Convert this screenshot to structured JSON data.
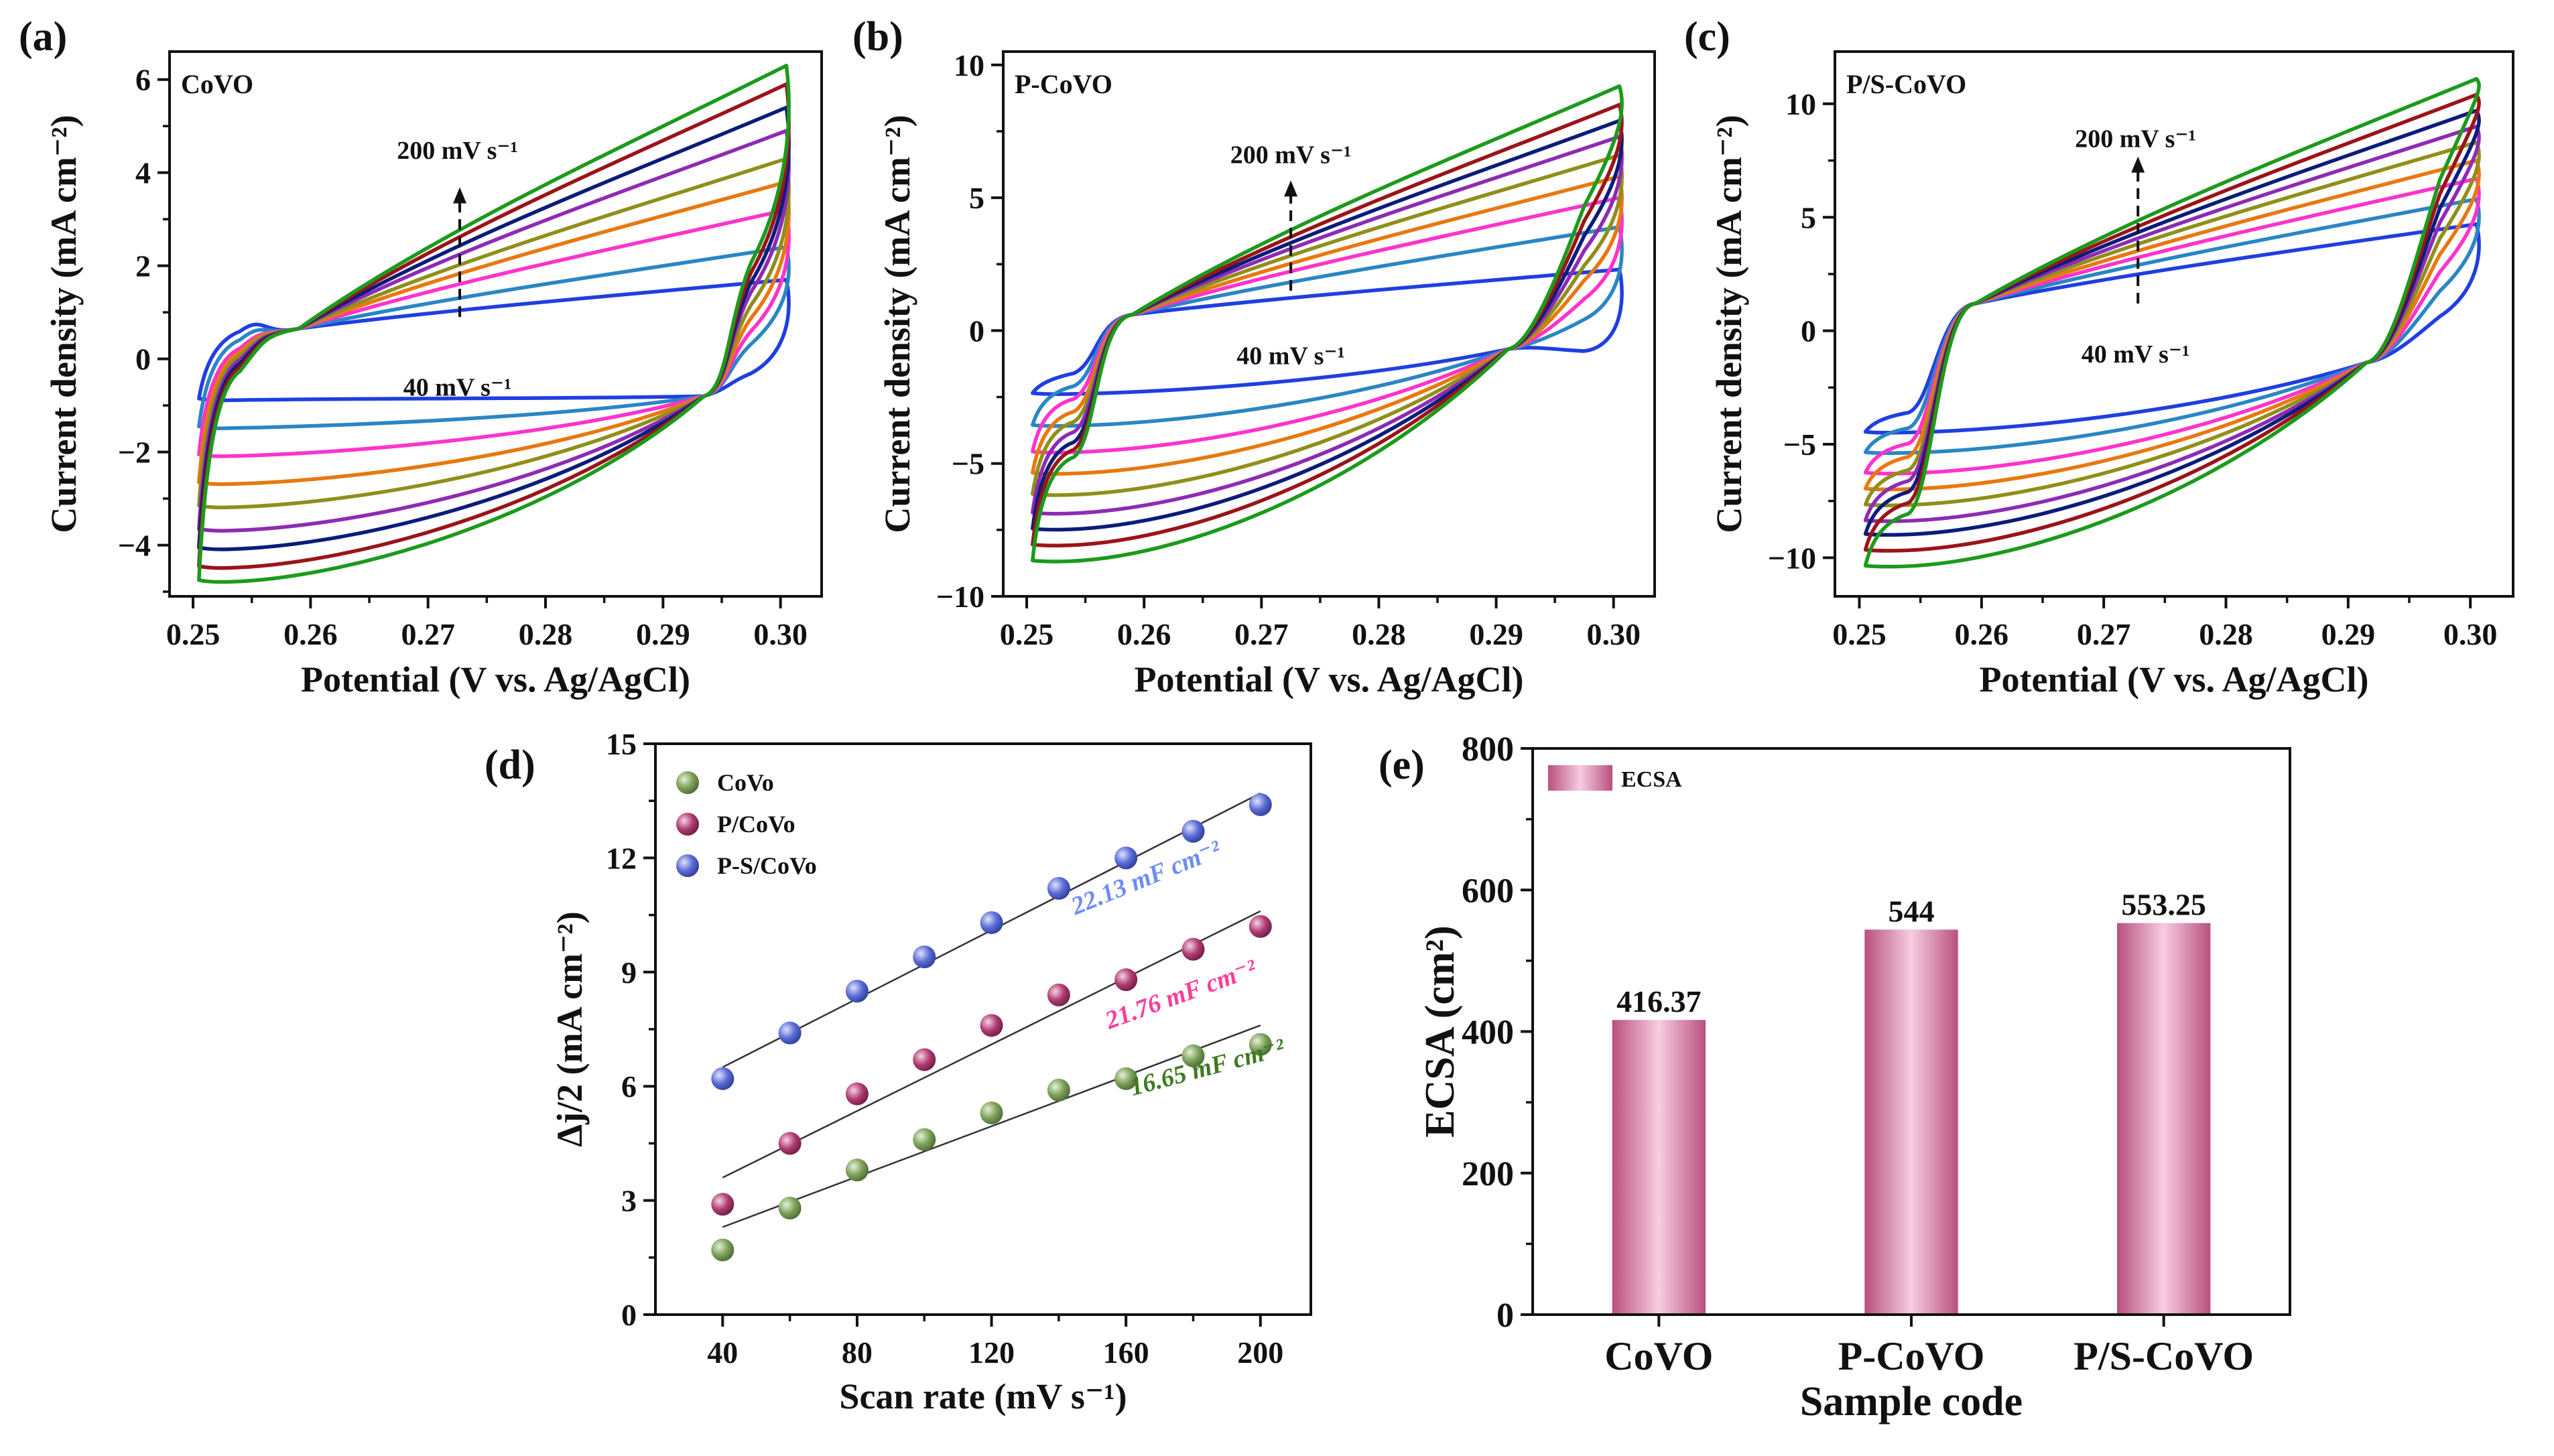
{
  "chart_data": [
    {
      "id": "a",
      "panel_label": "(a)",
      "type": "line",
      "title": "",
      "inset_label": "CoVO",
      "xlabel": "Potential (V vs. Ag/AgCl)",
      "ylabel": "Current density (mA cm⁻²)",
      "xlim": [
        0.248,
        0.3035
      ],
      "ylim": [
        -5.1,
        6.6
      ],
      "xticks": [
        0.25,
        0.26,
        0.27,
        0.28,
        0.29,
        0.3
      ],
      "xtick_labels": [
        "0.25",
        "0.26",
        "0.27",
        "0.28",
        "0.29",
        "0.30"
      ],
      "yticks": [
        -4,
        -2,
        0,
        2,
        4,
        6
      ],
      "ytick_labels": [
        "−4",
        "−2",
        "0",
        "2",
        "4",
        "6"
      ],
      "scan_rates": [
        40,
        60,
        80,
        100,
        120,
        140,
        160,
        180,
        200
      ],
      "colors": [
        "#1f3fe0",
        "#2a86c4",
        "#ff33cc",
        "#e8780f",
        "#8f8f1a",
        "#8e2bb3",
        "#0b1c7a",
        "#9b1419",
        "#1c9a1c"
      ],
      "upper_start": [
        0.4,
        0.2,
        0.0,
        -0.1,
        -0.2,
        -0.3,
        -0.4,
        -0.5,
        -0.6
      ],
      "upper_end": [
        1.7,
        2.4,
        3.2,
        3.8,
        4.3,
        4.9,
        5.4,
        5.9,
        6.3
      ],
      "lower_start": [
        -0.9,
        -1.5,
        -2.1,
        -2.7,
        -3.2,
        -3.7,
        -4.1,
        -4.5,
        -4.8
      ],
      "lower_end": [
        -0.1,
        0.8,
        1.2,
        1.6,
        2.0,
        2.4,
        2.7,
        3.0,
        3.3
      ],
      "cross_low": [
        0.259,
        0.65
      ],
      "cross_high": [
        0.2935,
        -0.8
      ],
      "arrow": {
        "x": 0.2727,
        "y_from": 0.9,
        "y_to": 3.6,
        "label_top": "200 mV s⁻¹",
        "label_bottom": "40 mV s⁻¹",
        "label_top_pos": [
          0.2725,
          4.3
        ],
        "label_bottom_pos": [
          0.2725,
          -0.3
        ]
      }
    },
    {
      "id": "b",
      "panel_label": "(b)",
      "type": "line",
      "title": "",
      "inset_label": "P-CoVO",
      "xlabel": "Potential (V vs. Ag/AgCl)",
      "ylabel": "Current density (mA cm⁻²)",
      "xlim": [
        0.248,
        0.3035
      ],
      "ylim": [
        -10,
        10.5
      ],
      "xticks": [
        0.25,
        0.26,
        0.27,
        0.28,
        0.29,
        0.3
      ],
      "xtick_labels": [
        "0.25",
        "0.26",
        "0.27",
        "0.28",
        "0.29",
        "0.30"
      ],
      "yticks": [
        -10,
        -5,
        0,
        5,
        10
      ],
      "ytick_labels": [
        "−10",
        "−5",
        "0",
        "5",
        "10"
      ],
      "scan_rates": [
        40,
        60,
        80,
        100,
        120,
        140,
        160,
        180,
        200
      ],
      "colors": [
        "#1f3fe0",
        "#2a86c4",
        "#ff33cc",
        "#e8780f",
        "#8f8f1a",
        "#8e2bb3",
        "#0b1c7a",
        "#9b1419",
        "#1c9a1c"
      ],
      "upper_start": [
        -1.8,
        -2.3,
        -2.8,
        -3.3,
        -3.7,
        -4.1,
        -4.5,
        -4.8,
        -5.1
      ],
      "upper_end": [
        2.3,
        3.9,
        5.0,
        5.8,
        6.6,
        7.3,
        7.9,
        8.5,
        9.2
      ],
      "lower_start": [
        -2.4,
        -3.6,
        -4.6,
        -5.4,
        -6.2,
        -6.9,
        -7.5,
        -8.1,
        -8.7
      ],
      "lower_end": [
        -0.8,
        0.9,
        2.0,
        3.0,
        3.8,
        4.6,
        5.4,
        6.2,
        7.0
      ],
      "cross_low": [
        0.259,
        0.6
      ],
      "cross_high": [
        0.291,
        -0.7
      ],
      "arrow": {
        "x": 0.2725,
        "y_from": 1.5,
        "y_to": 5.5,
        "label_top": "200 mV s⁻¹",
        "label_bottom": "40 mV s⁻¹",
        "label_top_pos": [
          0.2725,
          6.3
        ],
        "label_bottom_pos": [
          0.2725,
          -0.4
        ]
      }
    },
    {
      "id": "c",
      "panel_label": "(c)",
      "type": "line",
      "title": "",
      "inset_label": "P/S-CoVO",
      "xlabel": "Potential (V vs. Ag/AgCl)",
      "ylabel": "Current density (mA cm⁻²)",
      "xlim": [
        0.248,
        0.3035
      ],
      "ylim": [
        -11.7,
        12.3
      ],
      "xticks": [
        0.25,
        0.26,
        0.27,
        0.28,
        0.29,
        0.3
      ],
      "xtick_labels": [
        "0.25",
        "0.26",
        "0.27",
        "0.28",
        "0.29",
        "0.30"
      ],
      "yticks": [
        -10,
        -5,
        0,
        5,
        10
      ],
      "ytick_labels": [
        "−10",
        "−5",
        "0",
        "5",
        "10"
      ],
      "scan_rates": [
        40,
        60,
        80,
        100,
        120,
        140,
        160,
        180,
        200
      ],
      "colors": [
        "#1f3fe0",
        "#2a86c4",
        "#ff33cc",
        "#e8780f",
        "#8f8f1a",
        "#8e2bb3",
        "#0b1c7a",
        "#9b1419",
        "#1c9a1c"
      ],
      "upper_start": [
        -3.8,
        -4.5,
        -5.2,
        -5.8,
        -6.4,
        -6.9,
        -7.4,
        -7.9,
        -8.4
      ],
      "upper_end": [
        4.7,
        5.8,
        6.7,
        7.5,
        8.3,
        9.0,
        9.7,
        10.4,
        11.1
      ],
      "lower_start": [
        -4.5,
        -5.4,
        -6.3,
        -7.0,
        -7.7,
        -8.4,
        -9.0,
        -9.7,
        -10.4
      ],
      "lower_end": [
        1.5,
        3.1,
        4.3,
        5.4,
        6.4,
        7.4,
        8.3,
        9.2,
        10.1
      ],
      "cross_low": [
        0.2595,
        1.2
      ],
      "cross_high": [
        0.2915,
        -1.4
      ],
      "arrow": {
        "x": 0.2728,
        "y_from": 1.2,
        "y_to": 7.5,
        "label_top": "200 mV s⁻¹",
        "label_bottom": "40 mV s⁻¹",
        "label_top_pos": [
          0.2726,
          8.1
        ],
        "label_bottom_pos": [
          0.2726,
          -0.4
        ]
      }
    },
    {
      "id": "d",
      "panel_label": "(d)",
      "type": "scatter",
      "title": "",
      "xlabel": "Scan rate (mV s⁻¹)",
      "ylabel": "Δj/2 (mA cm⁻²)",
      "xlim": [
        20,
        215
      ],
      "ylim": [
        0,
        15
      ],
      "xticks": [
        40,
        80,
        120,
        160,
        200
      ],
      "yticks": [
        0,
        3,
        6,
        9,
        12,
        15
      ],
      "x": [
        40,
        60,
        80,
        100,
        120,
        140,
        160,
        180,
        200
      ],
      "series": [
        {
          "name": "CoVo",
          "color": "#7da15a",
          "values": [
            1.7,
            2.8,
            3.8,
            4.6,
            5.3,
            5.9,
            6.2,
            6.8,
            7.1
          ],
          "fit": [
            2.3,
            7.6
          ],
          "slope_label": "16.65 mF cm⁻²",
          "slope_color": "#3e7a1f",
          "label_pos": [
            162,
            5.75
          ],
          "label_angle": -15
        },
        {
          "name": "P/CoVo",
          "color": "#b03c72",
          "values": [
            2.9,
            4.5,
            5.8,
            6.7,
            7.6,
            8.4,
            8.8,
            9.6,
            10.2
          ],
          "fit": [
            3.6,
            10.6
          ],
          "slope_label": "21.76 mF cm⁻²",
          "slope_color": "#ff3d98",
          "label_pos": [
            155,
            7.5
          ],
          "label_angle": -20
        },
        {
          "name": "P-S/CoVo",
          "color": "#5a6bd6",
          "values": [
            6.2,
            7.4,
            8.5,
            9.4,
            10.3,
            11.2,
            12.0,
            12.7,
            13.4
          ],
          "fit": [
            6.5,
            13.7
          ],
          "slope_label": "22.13 mF cm⁻²",
          "slope_color": "#6c8cf5",
          "label_pos": [
            145,
            10.5
          ],
          "label_angle": -22
        }
      ]
    },
    {
      "id": "e",
      "panel_label": "(e)",
      "type": "bar",
      "title": "",
      "legend": "ECSA",
      "xlabel": "Sample code",
      "ylabel": "ECSA (cm²)",
      "ylim": [
        0,
        800
      ],
      "yticks": [
        0,
        200,
        400,
        600,
        800
      ],
      "categories": [
        "CoVO",
        "P-CoVO",
        "P/S-CoVO"
      ],
      "values": [
        416.37,
        544,
        553.25
      ],
      "value_labels": [
        "416.37",
        "544",
        "553.25"
      ],
      "bar_color_edge": "#b8507e",
      "bar_color_mid": "#f7cde0"
    }
  ]
}
